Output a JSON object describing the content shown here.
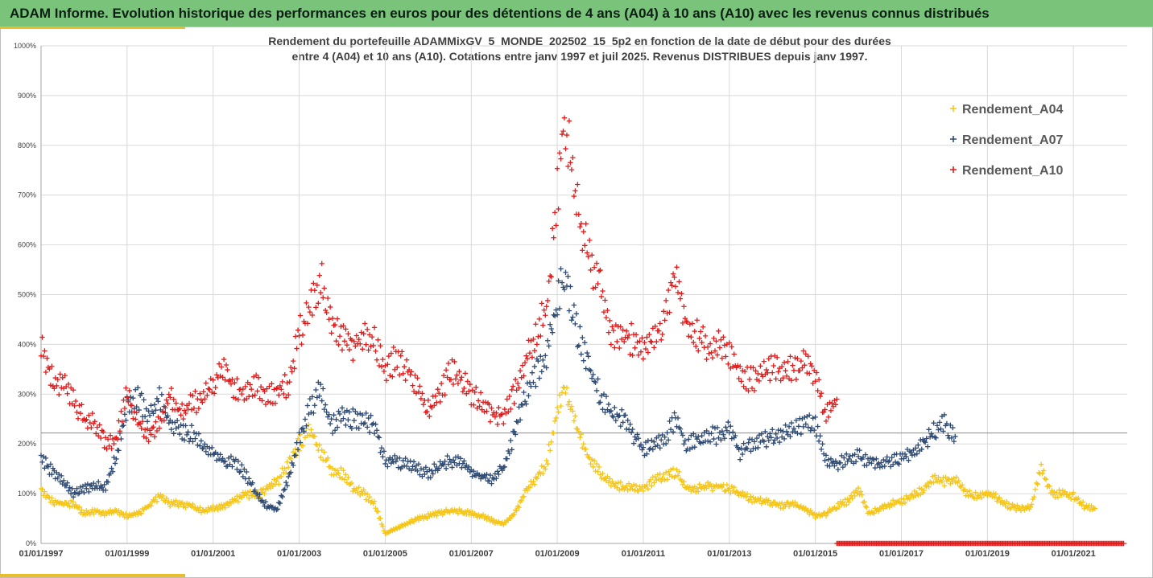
{
  "header": {
    "banner_title": "ADAM Informe. Evolution historique des performances en euros pour des détentions de 4 ans (A04) à 10 ans (A10) avec les revenus connus distribués"
  },
  "colors": {
    "banner_bg": "#79c47a",
    "accent": "#e8bf2a",
    "A04": "#f5c518",
    "A07": "#2e4a73",
    "A10": "#e01b1b"
  },
  "chart_data": {
    "type": "scatter",
    "title_line1": "Rendement du portefeuille ADAMMixGV_5_MONDE_202502_15_5p2 en fonction de la date de début pour des durées",
    "title_line2": "entre 4 (A04) et 10 ans (A10). Cotations entre janv 1997 et juil 2025. Revenus DISTRIBUES depuis janv 1997.",
    "x_axis": {
      "type": "date",
      "range": [
        "1997-01-01",
        "2022-04-01"
      ],
      "tick_labels": [
        "01/01/1997",
        "01/01/1999",
        "01/01/2001",
        "01/01/2003",
        "01/01/2005",
        "01/01/2007",
        "01/01/2009",
        "01/01/2011",
        "01/01/2013",
        "01/01/2015",
        "01/01/2017",
        "01/01/2019",
        "01/01/2021"
      ]
    },
    "y_axis": {
      "range": [
        0,
        1000
      ],
      "unit": "%",
      "tick_labels": [
        "0%",
        "100%",
        "200%",
        "300%",
        "400%",
        "500%",
        "600%",
        "700%",
        "800%",
        "900%",
        "1000%"
      ]
    },
    "grid": true,
    "reference_line_y": 222,
    "legend_position": "top-right",
    "series": [
      {
        "name": "Rendement_A04",
        "marker": "+",
        "points": [
          [
            "1997-01",
            110
          ],
          [
            "1997-04",
            85
          ],
          [
            "1997-07",
            80
          ],
          [
            "1997-10",
            80
          ],
          [
            "1998-01",
            60
          ],
          [
            "1998-04",
            65
          ],
          [
            "1998-07",
            60
          ],
          [
            "1998-10",
            65
          ],
          [
            "1999-01",
            55
          ],
          [
            "1999-04",
            60
          ],
          [
            "1999-07",
            75
          ],
          [
            "1999-10",
            95
          ],
          [
            "2000-01",
            80
          ],
          [
            "2000-04",
            80
          ],
          [
            "2000-07",
            75
          ],
          [
            "2000-10",
            65
          ],
          [
            "2001-01",
            70
          ],
          [
            "2001-04",
            75
          ],
          [
            "2001-07",
            85
          ],
          [
            "2001-10",
            100
          ],
          [
            "2002-01",
            95
          ],
          [
            "2002-04",
            110
          ],
          [
            "2002-07",
            125
          ],
          [
            "2002-10",
            160
          ],
          [
            "2003-01",
            200
          ],
          [
            "2003-04",
            230
          ],
          [
            "2003-07",
            180
          ],
          [
            "2003-10",
            150
          ],
          [
            "2004-01",
            140
          ],
          [
            "2004-04",
            110
          ],
          [
            "2004-07",
            100
          ],
          [
            "2004-10",
            80
          ],
          [
            "2005-01",
            20
          ],
          [
            "2005-04",
            30
          ],
          [
            "2005-07",
            40
          ],
          [
            "2005-10",
            50
          ],
          [
            "2006-01",
            55
          ],
          [
            "2006-04",
            60
          ],
          [
            "2006-07",
            65
          ],
          [
            "2006-10",
            65
          ],
          [
            "2007-01",
            60
          ],
          [
            "2007-04",
            55
          ],
          [
            "2007-07",
            45
          ],
          [
            "2007-10",
            40
          ],
          [
            "2008-01",
            60
          ],
          [
            "2008-04",
            100
          ],
          [
            "2008-07",
            130
          ],
          [
            "2008-10",
            160
          ],
          [
            "2009-01",
            270
          ],
          [
            "2009-03",
            310
          ],
          [
            "2009-07",
            220
          ],
          [
            "2009-10",
            170
          ],
          [
            "2010-01",
            140
          ],
          [
            "2010-04",
            120
          ],
          [
            "2010-07",
            115
          ],
          [
            "2010-10",
            110
          ],
          [
            "2011-01",
            110
          ],
          [
            "2011-04",
            130
          ],
          [
            "2011-07",
            135
          ],
          [
            "2011-10",
            145
          ],
          [
            "2012-01",
            110
          ],
          [
            "2012-04",
            110
          ],
          [
            "2012-07",
            115
          ],
          [
            "2012-10",
            115
          ],
          [
            "2013-01",
            110
          ],
          [
            "2013-04",
            100
          ],
          [
            "2013-07",
            90
          ],
          [
            "2013-10",
            85
          ],
          [
            "2014-01",
            80
          ],
          [
            "2014-04",
            75
          ],
          [
            "2014-07",
            80
          ],
          [
            "2014-10",
            70
          ],
          [
            "2015-01",
            55
          ],
          [
            "2015-04",
            60
          ],
          [
            "2015-07",
            75
          ],
          [
            "2015-10",
            85
          ],
          [
            "2016-01",
            110
          ],
          [
            "2016-04",
            60
          ],
          [
            "2016-07",
            70
          ],
          [
            "2016-10",
            80
          ],
          [
            "2017-01",
            85
          ],
          [
            "2017-04",
            95
          ],
          [
            "2017-07",
            110
          ],
          [
            "2017-10",
            130
          ],
          [
            "2018-01",
            125
          ],
          [
            "2018-04",
            130
          ],
          [
            "2018-07",
            100
          ],
          [
            "2018-10",
            95
          ],
          [
            "2019-01",
            100
          ],
          [
            "2019-04",
            90
          ],
          [
            "2019-07",
            75
          ],
          [
            "2019-10",
            70
          ],
          [
            "2020-01",
            70
          ],
          [
            "2020-04",
            150
          ],
          [
            "2020-07",
            100
          ],
          [
            "2020-10",
            100
          ],
          [
            "2021-01",
            95
          ],
          [
            "2021-04",
            75
          ],
          [
            "2021-07",
            70
          ]
        ]
      },
      {
        "name": "Rendement_A07",
        "marker": "+",
        "points": [
          [
            "1997-01",
            170
          ],
          [
            "1997-04",
            145
          ],
          [
            "1997-07",
            125
          ],
          [
            "1997-10",
            100
          ],
          [
            "1998-01",
            110
          ],
          [
            "1998-04",
            115
          ],
          [
            "1998-07",
            115
          ],
          [
            "1998-10",
            175
          ],
          [
            "1999-01",
            280
          ],
          [
            "1999-04",
            290
          ],
          [
            "1999-07",
            260
          ],
          [
            "1999-10",
            290
          ],
          [
            "2000-01",
            240
          ],
          [
            "2000-04",
            225
          ],
          [
            "2000-07",
            220
          ],
          [
            "2000-10",
            200
          ],
          [
            "2001-01",
            180
          ],
          [
            "2001-04",
            165
          ],
          [
            "2001-07",
            165
          ],
          [
            "2001-10",
            140
          ],
          [
            "2002-01",
            100
          ],
          [
            "2002-04",
            75
          ],
          [
            "2002-07",
            70
          ],
          [
            "2002-10",
            130
          ],
          [
            "2003-01",
            210
          ],
          [
            "2003-04",
            270
          ],
          [
            "2003-07",
            310
          ],
          [
            "2003-10",
            235
          ],
          [
            "2004-01",
            260
          ],
          [
            "2004-04",
            250
          ],
          [
            "2004-07",
            245
          ],
          [
            "2004-10",
            240
          ],
          [
            "2005-01",
            165
          ],
          [
            "2005-04",
            165
          ],
          [
            "2005-07",
            160
          ],
          [
            "2005-10",
            150
          ],
          [
            "2006-01",
            140
          ],
          [
            "2006-04",
            155
          ],
          [
            "2006-07",
            165
          ],
          [
            "2006-10",
            160
          ],
          [
            "2007-01",
            145
          ],
          [
            "2007-04",
            135
          ],
          [
            "2007-07",
            130
          ],
          [
            "2007-10",
            150
          ],
          [
            "2008-01",
            220
          ],
          [
            "2008-04",
            300
          ],
          [
            "2008-07",
            340
          ],
          [
            "2008-10",
            380
          ],
          [
            "2009-01",
            480
          ],
          [
            "2009-03",
            550
          ],
          [
            "2009-07",
            410
          ],
          [
            "2009-10",
            350
          ],
          [
            "2010-01",
            300
          ],
          [
            "2010-04",
            265
          ],
          [
            "2010-07",
            250
          ],
          [
            "2010-10",
            220
          ],
          [
            "2011-01",
            190
          ],
          [
            "2011-04",
            200
          ],
          [
            "2011-07",
            210
          ],
          [
            "2011-10",
            250
          ],
          [
            "2012-01",
            200
          ],
          [
            "2012-04",
            210
          ],
          [
            "2012-07",
            220
          ],
          [
            "2012-10",
            215
          ],
          [
            "2013-01",
            240
          ],
          [
            "2013-04",
            180
          ],
          [
            "2013-07",
            200
          ],
          [
            "2013-10",
            205
          ],
          [
            "2014-01",
            215
          ],
          [
            "2014-04",
            220
          ],
          [
            "2014-07",
            230
          ],
          [
            "2014-10",
            240
          ],
          [
            "2015-01",
            240
          ],
          [
            "2015-04",
            170
          ],
          [
            "2015-07",
            160
          ],
          [
            "2015-10",
            170
          ],
          [
            "2016-01",
            175
          ],
          [
            "2016-04",
            165
          ],
          [
            "2016-07",
            160
          ],
          [
            "2016-10",
            165
          ],
          [
            "2017-01",
            170
          ],
          [
            "2017-04",
            180
          ],
          [
            "2017-07",
            200
          ],
          [
            "2017-10",
            225
          ],
          [
            "2018-01",
            240
          ],
          [
            "2018-04",
            215
          ]
        ]
      },
      {
        "name": "Rendement_A10",
        "marker": "+",
        "points": [
          [
            "1997-01",
            405
          ],
          [
            "1997-04",
            330
          ],
          [
            "1997-07",
            320
          ],
          [
            "1997-10",
            290
          ],
          [
            "1998-01",
            250
          ],
          [
            "1998-04",
            240
          ],
          [
            "1998-07",
            200
          ],
          [
            "1998-10",
            210
          ],
          [
            "1999-01",
            300
          ],
          [
            "1999-04",
            240
          ],
          [
            "1999-07",
            220
          ],
          [
            "1999-10",
            240
          ],
          [
            "2000-01",
            300
          ],
          [
            "2000-04",
            260
          ],
          [
            "2000-07",
            280
          ],
          [
            "2000-10",
            290
          ],
          [
            "2001-01",
            320
          ],
          [
            "2001-04",
            350
          ],
          [
            "2001-07",
            310
          ],
          [
            "2001-10",
            300
          ],
          [
            "2002-01",
            320
          ],
          [
            "2002-04",
            295
          ],
          [
            "2002-07",
            305
          ],
          [
            "2002-10",
            320
          ],
          [
            "2003-01",
            420
          ],
          [
            "2003-04",
            470
          ],
          [
            "2003-07",
            530
          ],
          [
            "2003-10",
            450
          ],
          [
            "2004-01",
            410
          ],
          [
            "2004-04",
            400
          ],
          [
            "2004-07",
            410
          ],
          [
            "2004-10",
            410
          ],
          [
            "2005-01",
            350
          ],
          [
            "2005-04",
            370
          ],
          [
            "2005-07",
            350
          ],
          [
            "2005-10",
            320
          ],
          [
            "2006-01",
            270
          ],
          [
            "2006-04",
            290
          ],
          [
            "2006-07",
            350
          ],
          [
            "2006-10",
            330
          ],
          [
            "2007-01",
            300
          ],
          [
            "2007-04",
            280
          ],
          [
            "2007-07",
            260
          ],
          [
            "2007-10",
            260
          ],
          [
            "2008-01",
            300
          ],
          [
            "2008-04",
            360
          ],
          [
            "2008-07",
            420
          ],
          [
            "2008-10",
            470
          ],
          [
            "2009-01",
            700
          ],
          [
            "2009-03",
            850
          ],
          [
            "2009-07",
            660
          ],
          [
            "2009-10",
            570
          ],
          [
            "2010-01",
            530
          ],
          [
            "2010-04",
            420
          ],
          [
            "2010-07",
            420
          ],
          [
            "2010-10",
            410
          ],
          [
            "2011-01",
            390
          ],
          [
            "2011-04",
            410
          ],
          [
            "2011-07",
            450
          ],
          [
            "2011-10",
            560
          ],
          [
            "2012-01",
            440
          ],
          [
            "2012-04",
            420
          ],
          [
            "2012-07",
            390
          ],
          [
            "2012-10",
            400
          ],
          [
            "2013-01",
            380
          ],
          [
            "2013-04",
            340
          ],
          [
            "2013-07",
            330
          ],
          [
            "2013-10",
            340
          ],
          [
            "2014-01",
            350
          ],
          [
            "2014-04",
            350
          ],
          [
            "2014-07",
            350
          ],
          [
            "2014-10",
            370
          ],
          [
            "2015-01",
            330
          ],
          [
            "2015-04",
            260
          ],
          [
            "2015-07",
            290
          ],
          [
            "2015-07",
            0
          ],
          [
            "2016-01",
            0
          ],
          [
            "2017-01",
            0
          ],
          [
            "2018-01",
            0
          ],
          [
            "2019-01",
            0
          ],
          [
            "2020-01",
            0
          ],
          [
            "2021-01",
            0
          ],
          [
            "2022-03",
            0
          ]
        ]
      }
    ]
  }
}
